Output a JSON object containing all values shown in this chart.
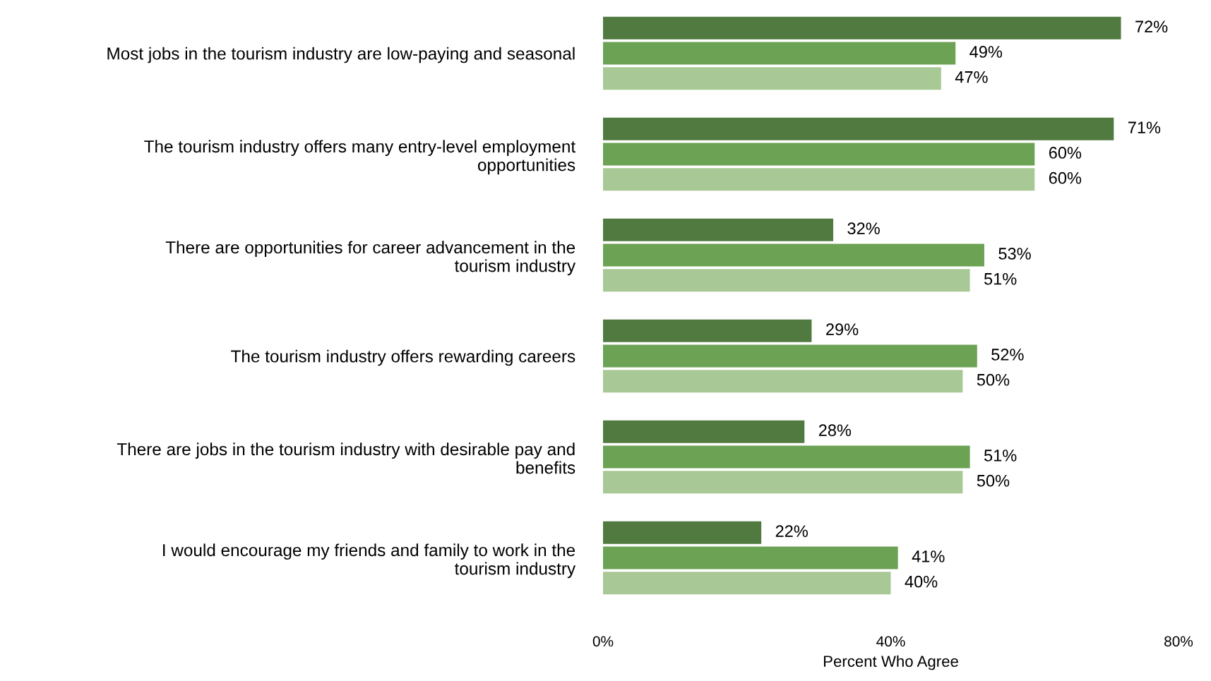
{
  "chart_data": {
    "type": "bar",
    "orientation": "horizontal",
    "xlabel": "Percent Who Agree",
    "categories": [
      "Most jobs in the tourism industry are low-paying and seasonal",
      "The tourism industry offers many entry-level employment\nopportunities",
      "There are opportunities for career advancement in the\ntourism industry",
      "The tourism industry offers rewarding careers",
      "There are jobs in the tourism industry with desirable pay and\nbenefits",
      "I would encourage my friends and family to work in the\ntourism industry"
    ],
    "series": [
      {
        "color": "#507a40",
        "values": [
          72,
          71,
          32,
          29,
          28,
          22
        ],
        "value_labels": [
          "72%",
          "71%",
          "32%",
          "29%",
          "28%",
          "22%"
        ]
      },
      {
        "color": "#6ba254",
        "values": [
          49,
          60,
          53,
          52,
          51,
          41
        ],
        "value_labels": [
          "49%",
          "60%",
          "53%",
          "52%",
          "51%",
          "41%"
        ]
      },
      {
        "color": "#a8c996",
        "values": [
          47,
          60,
          51,
          50,
          50,
          40
        ],
        "value_labels": [
          "47%",
          "60%",
          "51%",
          "50%",
          "50%",
          "40%"
        ]
      }
    ],
    "xlim": [
      0,
      80
    ],
    "xticks": [
      {
        "value": 0,
        "label": "0%"
      },
      {
        "value": 40,
        "label": "40%"
      },
      {
        "value": 80,
        "label": "80%"
      }
    ],
    "grid": false,
    "legend": false
  }
}
